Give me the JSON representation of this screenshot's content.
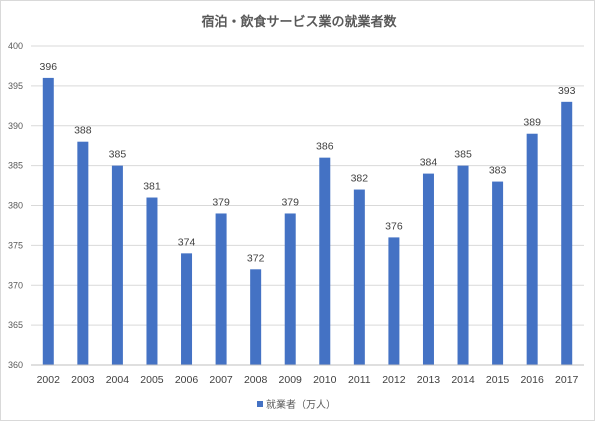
{
  "chart_data": {
    "type": "bar",
    "title": "宿泊・飲食サービス業の就業者数",
    "categories": [
      "2002",
      "2003",
      "2004",
      "2005",
      "2006",
      "2007",
      "2008",
      "2009",
      "2010",
      "2011",
      "2012",
      "2013",
      "2014",
      "2015",
      "2016",
      "2017"
    ],
    "series": [
      {
        "name": "就業者（万人）",
        "color": "#4472c4",
        "values": [
          396,
          388,
          385,
          381,
          374,
          379,
          372,
          379,
          386,
          382,
          376,
          384,
          385,
          383,
          389,
          393
        ]
      }
    ],
    "ylim": [
      360,
      400
    ],
    "yticks": [
      360,
      365,
      370,
      375,
      380,
      385,
      390,
      395,
      400
    ],
    "grid": true,
    "legend_position": "bottom",
    "data_labels": true
  }
}
